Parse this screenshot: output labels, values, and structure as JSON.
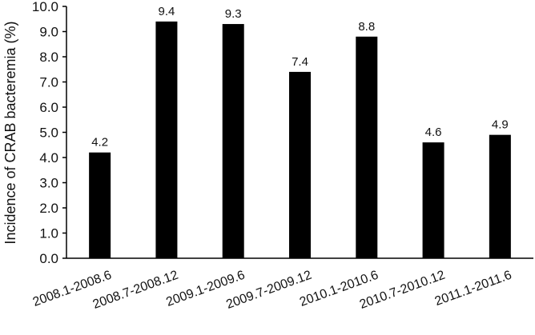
{
  "chart_data": {
    "type": "bar",
    "title": "",
    "xlabel": "",
    "ylabel": "Incidence of CRAB bacteremia (%)",
    "ylim": [
      0,
      10
    ],
    "y_ticks": [
      "0.0",
      "1.0",
      "2.0",
      "3.0",
      "4.0",
      "5.0",
      "6.0",
      "7.0",
      "8.0",
      "9.0",
      "10.0"
    ],
    "categories": [
      "2008.1-2008.6",
      "2008.7-2008.12",
      "2009.1-2009.6",
      "2009.7-2009.12",
      "2010.1-2010.6",
      "2010.7-2010.12",
      "2011.1-2011.6"
    ],
    "values": [
      4.2,
      9.4,
      9.3,
      7.4,
      8.8,
      4.6,
      4.9
    ],
    "data_labels": [
      "4.2",
      "9.4",
      "9.3",
      "7.4",
      "8.8",
      "4.6",
      "4.9"
    ],
    "bar_color": "#000000",
    "grid": false,
    "legend": "none"
  }
}
